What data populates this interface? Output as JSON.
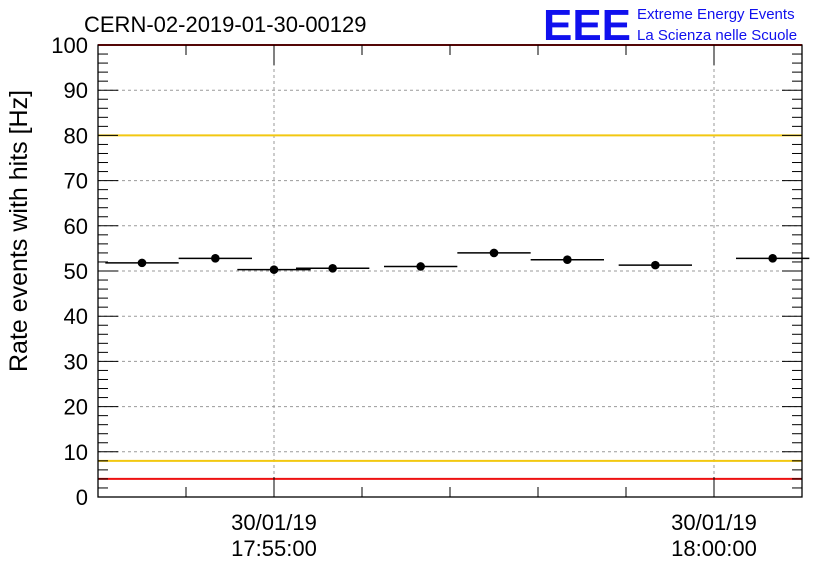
{
  "title": "CERN-02-2019-01-30-00129",
  "logo": {
    "mark": "EEE",
    "line1": "Extreme Energy Events",
    "line2": "La Scienza nelle Scuole",
    "color": "#1010ee"
  },
  "chart_data": {
    "type": "scatter",
    "title": "CERN-02-2019-01-30-00129",
    "xlabel": "",
    "ylabel": "Rate events with hits [Hz]",
    "ylim": [
      0,
      100
    ],
    "yticks": [
      0,
      10,
      20,
      30,
      40,
      50,
      60,
      70,
      80,
      90,
      100
    ],
    "xlim": [
      "2019-01-30 17:53:00",
      "2019-01-30 18:01:00"
    ],
    "xticks": [
      {
        "date": "30/01/19",
        "time": "17:55:00"
      },
      {
        "date": "30/01/19",
        "time": "18:00:00"
      }
    ],
    "grid": true,
    "series": [
      {
        "x": [
          "17:53:30",
          "17:54:20",
          "17:55:00",
          "17:55:40",
          "17:56:40",
          "17:57:30",
          "17:58:20",
          "17:59:20",
          "18:00:40"
        ],
        "x_halfwidth_seconds": 25,
        "values": [
          51.8,
          52.8,
          50.3,
          50.6,
          51.0,
          54.0,
          52.5,
          51.3,
          52.8
        ]
      }
    ],
    "reference_lines": [
      {
        "y": 100,
        "color": "#ee1111"
      },
      {
        "y": 80,
        "color": "#f2c811"
      },
      {
        "y": 8,
        "color": "#f2c811"
      },
      {
        "y": 4,
        "color": "#ee1111"
      }
    ]
  }
}
